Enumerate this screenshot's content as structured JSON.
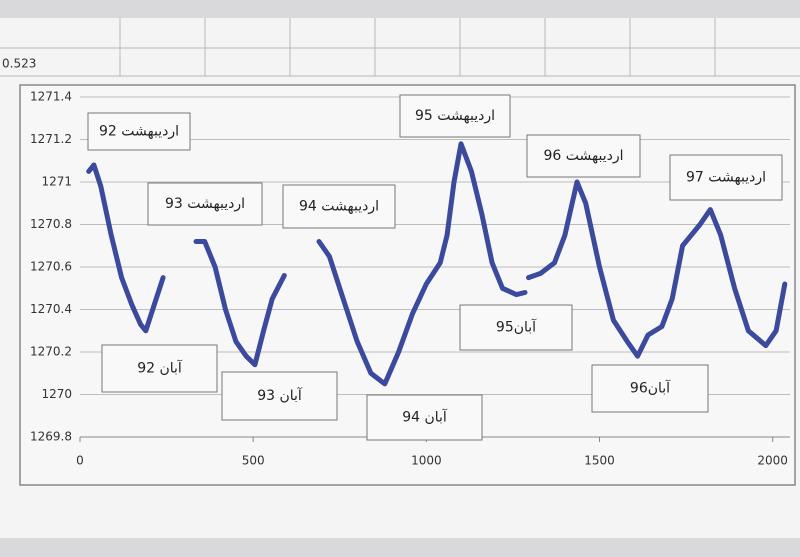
{
  "cell_text": "0.523",
  "chart_data": {
    "type": "line",
    "color": "#3b4a9c",
    "grid": true,
    "xlim": [
      0,
      2050
    ],
    "ylim": [
      1269.8,
      1271.4
    ],
    "xticks": [
      0,
      500,
      1000,
      1500,
      2000
    ],
    "yticks": [
      1269.8,
      1270,
      1270.2,
      1270.4,
      1270.6,
      1270.8,
      1271,
      1271.2,
      1271.4
    ],
    "annotations": [
      "اردیبهشت 92",
      "اردیبهشت 93",
      "اردیبهشت 94",
      "اردیبهشت 95",
      "اردیبهشت 96",
      "اردیبهشت 97",
      "آبان 92",
      "آبان 93",
      "آبان 94",
      "آبان95",
      "آبان96"
    ],
    "x": [
      25,
      40,
      60,
      90,
      120,
      150,
      175,
      190,
      210,
      240,
      290,
      335,
      360,
      390,
      420,
      450,
      480,
      505,
      530,
      555,
      590,
      640,
      690,
      720,
      760,
      800,
      840,
      880,
      920,
      960,
      1000,
      1040,
      1060,
      1080,
      1100,
      1130,
      1160,
      1190,
      1220,
      1260,
      1285,
      1290,
      1295,
      1330,
      1370,
      1400,
      1435,
      1460,
      1500,
      1540,
      1580,
      1610,
      1640,
      1680,
      1710,
      1740,
      1790,
      1820,
      1850,
      1890,
      1930,
      1980,
      2010,
      2035
    ],
    "values": [
      1271.05,
      1271.08,
      1270.98,
      1270.75,
      1270.55,
      1270.42,
      1270.33,
      1270.3,
      1270.4,
      1270.55,
      null,
      1270.72,
      1270.72,
      1270.6,
      1270.4,
      1270.25,
      1270.18,
      1270.14,
      1270.3,
      1270.45,
      1270.56,
      null,
      1270.72,
      1270.65,
      1270.45,
      1270.25,
      1270.1,
      1270.05,
      1270.2,
      1270.38,
      1270.52,
      1270.62,
      1270.75,
      1271.0,
      1271.18,
      1271.05,
      1270.85,
      1270.62,
      1270.5,
      1270.47,
      1270.48,
      null,
      1270.55,
      1270.57,
      1270.62,
      1270.75,
      1271.0,
      1270.9,
      1270.6,
      1270.35,
      1270.25,
      1270.18,
      1270.28,
      1270.32,
      1270.45,
      1270.7,
      1270.8,
      1270.87,
      1270.75,
      1270.5,
      1270.3,
      1270.23,
      1270.3,
      1270.52
    ]
  }
}
